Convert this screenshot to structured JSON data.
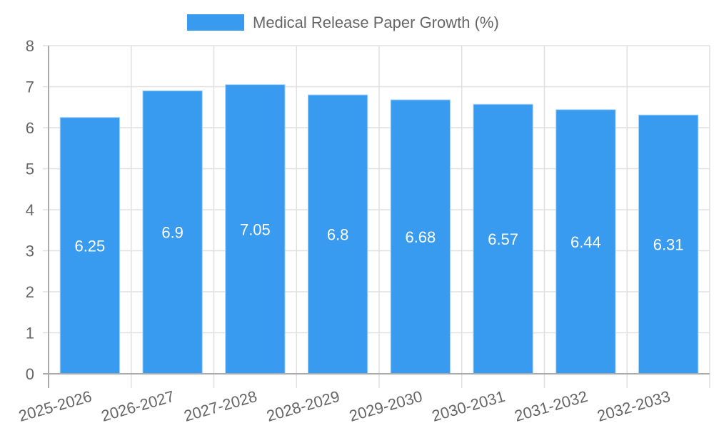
{
  "chart_data": {
    "type": "bar",
    "title": "",
    "legend": [
      {
        "label": "Medical Release Paper Growth (%)",
        "color": "#399bef"
      }
    ],
    "legend_position": "top",
    "categories": [
      "2025-2026",
      "2026-2027",
      "2027-2028",
      "2028-2029",
      "2029-2030",
      "2030-2031",
      "2031-2032",
      "2032-2033"
    ],
    "series": [
      {
        "name": "Medical Release Paper Growth (%)",
        "values": [
          6.25,
          6.9,
          7.05,
          6.8,
          6.68,
          6.57,
          6.44,
          6.31
        ],
        "color": "#399bef"
      }
    ],
    "data_labels": [
      "6.25",
      "6.9",
      "7.05",
      "6.8",
      "6.68",
      "6.57",
      "6.44",
      "6.31"
    ],
    "xlabel": "",
    "ylabel": "",
    "ylim": [
      0,
      8
    ],
    "y_ticks": [
      "0",
      "1",
      "2",
      "3",
      "4",
      "5",
      "6",
      "7",
      "8"
    ],
    "grid": true
  },
  "colors": {
    "bar": "#399bef",
    "grid": "#e0e0e0",
    "axis": "#aaaaaa",
    "text": "#666666",
    "label": "#ffffff"
  }
}
